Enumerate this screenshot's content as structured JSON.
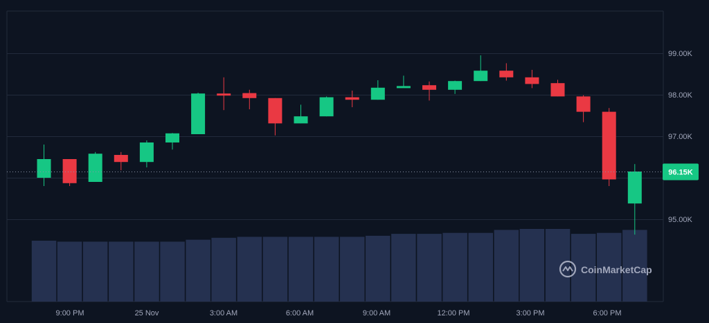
{
  "chart_data": {
    "type": "candlestick",
    "y_axis_ticks": [
      {
        "value": 95000,
        "label": "95.00K"
      },
      {
        "value": 97000,
        "label": "97.00K"
      },
      {
        "value": 98000,
        "label": "98.00K"
      },
      {
        "value": 99000,
        "label": "99.00K"
      }
    ],
    "x_axis_ticks": [
      "9:00 PM",
      "25 Nov",
      "3:00 AM",
      "6:00 AM",
      "9:00 AM",
      "12:00 PM",
      "3:00 PM",
      "6:00 PM"
    ],
    "current_price": {
      "value": 96150,
      "label": "96.15K"
    },
    "grid": true,
    "candles": [
      {
        "open": 96000,
        "high": 96800,
        "low": 95800,
        "close": 96450
      },
      {
        "open": 96450,
        "high": 96450,
        "low": 95800,
        "close": 95870
      },
      {
        "open": 95900,
        "high": 96620,
        "low": 95900,
        "close": 96580
      },
      {
        "open": 96550,
        "high": 96620,
        "low": 96180,
        "close": 96380
      },
      {
        "open": 96380,
        "high": 96900,
        "low": 96250,
        "close": 96850
      },
      {
        "open": 96850,
        "high": 97080,
        "low": 96680,
        "close": 97070
      },
      {
        "open": 97050,
        "high": 98050,
        "low": 97050,
        "close": 98030
      },
      {
        "open": 98030,
        "high": 98420,
        "low": 97630,
        "close": 98020
      },
      {
        "open": 98040,
        "high": 98120,
        "low": 97650,
        "close": 97920
      },
      {
        "open": 97920,
        "high": 97920,
        "low": 97020,
        "close": 97310
      },
      {
        "open": 97310,
        "high": 97760,
        "low": 97310,
        "close": 97480
      },
      {
        "open": 97480,
        "high": 97960,
        "low": 97480,
        "close": 97940
      },
      {
        "open": 97940,
        "high": 98100,
        "low": 97700,
        "close": 97880
      },
      {
        "open": 97880,
        "high": 98350,
        "low": 97880,
        "close": 98170
      },
      {
        "open": 98170,
        "high": 98460,
        "low": 98170,
        "close": 98210
      },
      {
        "open": 98230,
        "high": 98320,
        "low": 97860,
        "close": 98120
      },
      {
        "open": 98120,
        "high": 98340,
        "low": 98020,
        "close": 98330
      },
      {
        "open": 98330,
        "high": 98950,
        "low": 98330,
        "close": 98580
      },
      {
        "open": 98580,
        "high": 98760,
        "low": 98340,
        "close": 98420
      },
      {
        "open": 98420,
        "high": 98600,
        "low": 98160,
        "close": 98260
      },
      {
        "open": 98280,
        "high": 98360,
        "low": 97960,
        "close": 97960
      },
      {
        "open": 97960,
        "high": 97990,
        "low": 97340,
        "close": 97590
      },
      {
        "open": 97590,
        "high": 97680,
        "low": 95800,
        "close": 95960
      },
      {
        "open": 95380,
        "high": 96330,
        "low": 94630,
        "close": 96150
      }
    ],
    "volume_relative": [
      0.62,
      0.61,
      0.61,
      0.61,
      0.61,
      0.61,
      0.63,
      0.65,
      0.66,
      0.66,
      0.66,
      0.66,
      0.66,
      0.67,
      0.69,
      0.69,
      0.7,
      0.7,
      0.73,
      0.74,
      0.74,
      0.69,
      0.7,
      0.73
    ],
    "colors": {
      "background": "#0d1421",
      "up": "#16c784",
      "down": "#ea3943",
      "volume": "#253150",
      "grid": "#222b3c",
      "axis_text": "#a1a7bb",
      "badge": "#16c784"
    }
  },
  "brand": {
    "name": "CoinMarketCap"
  }
}
